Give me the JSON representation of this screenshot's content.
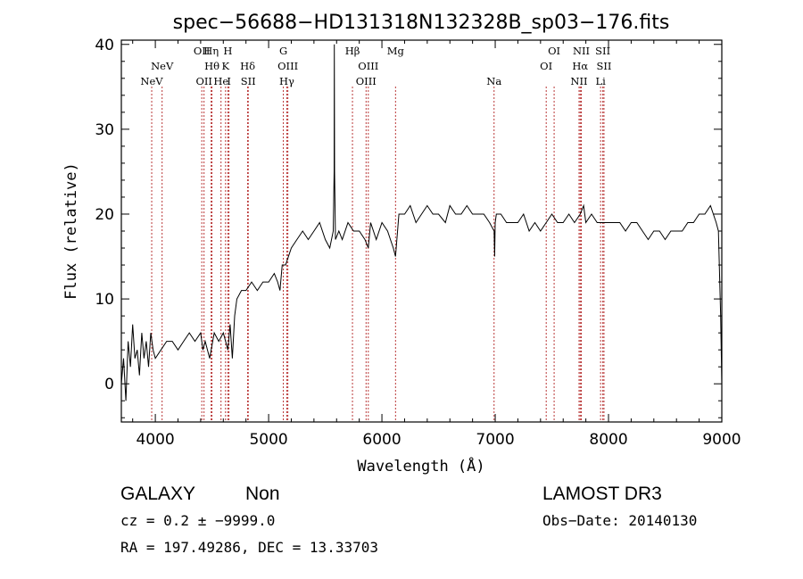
{
  "chart_data": {
    "type": "line",
    "title": "spec−56688−HD131318N132328B_sp03−176.fits",
    "xlabel": "Wavelength (Å)",
    "ylabel": "Flux (relative)",
    "xlim": [
      3700,
      9000
    ],
    "ylim": [
      -4.5,
      40.5
    ],
    "xticks": [
      4000,
      5000,
      6000,
      7000,
      8000,
      9000
    ],
    "yticks": [
      0,
      10,
      20,
      30,
      40
    ],
    "series": [
      {
        "name": "spectrum",
        "x": [
          3700,
          3720,
          3740,
          3760,
          3780,
          3800,
          3820,
          3840,
          3860,
          3880,
          3900,
          3920,
          3940,
          3960,
          3980,
          4000,
          4050,
          4100,
          4150,
          4200,
          4250,
          4300,
          4350,
          4400,
          4420,
          4440,
          4480,
          4520,
          4560,
          4600,
          4640,
          4660,
          4680,
          4700,
          4720,
          4760,
          4800,
          4850,
          4900,
          4950,
          5000,
          5050,
          5080,
          5100,
          5120,
          5150,
          5200,
          5250,
          5300,
          5350,
          5400,
          5450,
          5500,
          5540,
          5570,
          5578,
          5580,
          5582,
          5590,
          5620,
          5650,
          5700,
          5750,
          5800,
          5850,
          5880,
          5900,
          5950,
          6000,
          6050,
          6100,
          6120,
          6150,
          6200,
          6250,
          6300,
          6350,
          6400,
          6450,
          6500,
          6560,
          6600,
          6650,
          6700,
          6750,
          6800,
          6850,
          6900,
          6950,
          6990,
          6995,
          7000,
          7010,
          7050,
          7100,
          7150,
          7200,
          7250,
          7300,
          7350,
          7400,
          7450,
          7500,
          7550,
          7600,
          7650,
          7700,
          7750,
          7780,
          7800,
          7850,
          7900,
          7950,
          8000,
          8050,
          8100,
          8150,
          8200,
          8250,
          8300,
          8350,
          8400,
          8450,
          8500,
          8550,
          8600,
          8650,
          8700,
          8750,
          8800,
          8850,
          8900,
          8950,
          8970,
          8990,
          9000
        ],
        "y": [
          0,
          3,
          -2,
          5,
          2,
          7,
          3,
          4,
          1,
          6,
          3,
          5,
          2,
          6,
          4,
          3,
          4,
          5,
          5,
          4,
          5,
          6,
          5,
          6,
          4,
          5,
          3,
          6,
          5,
          6,
          4,
          7,
          3,
          8,
          10,
          11,
          11,
          12,
          11,
          12,
          12,
          13,
          12,
          11,
          14,
          14,
          16,
          17,
          18,
          17,
          18,
          19,
          17,
          16,
          18,
          25,
          40,
          25,
          17,
          18,
          17,
          19,
          18,
          18,
          17,
          16,
          19,
          17,
          19,
          18,
          16,
          15,
          20,
          20,
          21,
          19,
          20,
          21,
          20,
          20,
          19,
          21,
          20,
          20,
          21,
          20,
          20,
          20,
          19,
          18,
          15,
          19,
          20,
          20,
          19,
          19,
          19,
          20,
          18,
          19,
          18,
          19,
          20,
          19,
          19,
          20,
          19,
          20,
          21,
          19,
          20,
          19,
          19,
          19,
          19,
          19,
          18,
          19,
          19,
          18,
          17,
          18,
          18,
          17,
          18,
          18,
          18,
          19,
          19,
          20,
          20,
          21,
          19,
          18,
          8,
          0
        ],
        "color": "#000000"
      }
    ],
    "line_markers": [
      {
        "name": "NeV",
        "wavelength": 3968,
        "label_row": 3
      },
      {
        "name": "NeV",
        "wavelength": 4060,
        "label_row": 2
      },
      {
        "name": "OII",
        "wavelength": 4410,
        "label_row": 1
      },
      {
        "name": "OII",
        "wavelength": 4430,
        "label_row": 3
      },
      {
        "name": "Hη",
        "wavelength": 4493,
        "label_row": 1
      },
      {
        "name": "Hθ",
        "wavelength": 4500,
        "label_row": 2
      },
      {
        "name": "He",
        "wavelength": 4580,
        "label_row": 3
      },
      {
        "name": "H",
        "wavelength": 4640,
        "label_row": 1
      },
      {
        "name": "K",
        "wavelength": 4620,
        "label_row": 2
      },
      {
        "name": "I",
        "wavelength": 4650,
        "label_row": 3
      },
      {
        "name": "Hδ",
        "wavelength": 4815,
        "label_row": 2
      },
      {
        "name": "SII",
        "wavelength": 4820,
        "label_row": 3
      },
      {
        "name": "G",
        "wavelength": 5130,
        "label_row": 1
      },
      {
        "name": "OIII",
        "wavelength": 5170,
        "label_row": 2
      },
      {
        "name": "Hγ",
        "wavelength": 5160,
        "label_row": 3
      },
      {
        "name": "Hβ",
        "wavelength": 5740,
        "label_row": 1
      },
      {
        "name": "OIII",
        "wavelength": 5880,
        "label_row": 2
      },
      {
        "name": "OIII",
        "wavelength": 5860,
        "label_row": 3
      },
      {
        "name": "Mg",
        "wavelength": 6120,
        "label_row": 1
      },
      {
        "name": "Na",
        "wavelength": 6990,
        "label_row": 3
      },
      {
        "name": "OI",
        "wavelength": 7520,
        "label_row": 1
      },
      {
        "name": "OI",
        "wavelength": 7450,
        "label_row": 2
      },
      {
        "name": "NII",
        "wavelength": 7760,
        "label_row": 1
      },
      {
        "name": "Hα",
        "wavelength": 7750,
        "label_row": 2
      },
      {
        "name": "NII",
        "wavelength": 7740,
        "label_row": 3
      },
      {
        "name": "SII",
        "wavelength": 7950,
        "label_row": 1
      },
      {
        "name": "SII",
        "wavelength": 7960,
        "label_row": 2
      },
      {
        "name": "Li",
        "wavelength": 7930,
        "label_row": 3
      }
    ],
    "marker_color": "#b22222"
  },
  "footer": {
    "object_class": "GALAXY",
    "subclass": "Non",
    "survey": "LAMOST DR3",
    "redshift": "cz = 0.2 ± −9999.0",
    "obs_date": "Obs−Date: 20140130",
    "coords": "RA = 197.49286, DEC =  13.33703"
  }
}
